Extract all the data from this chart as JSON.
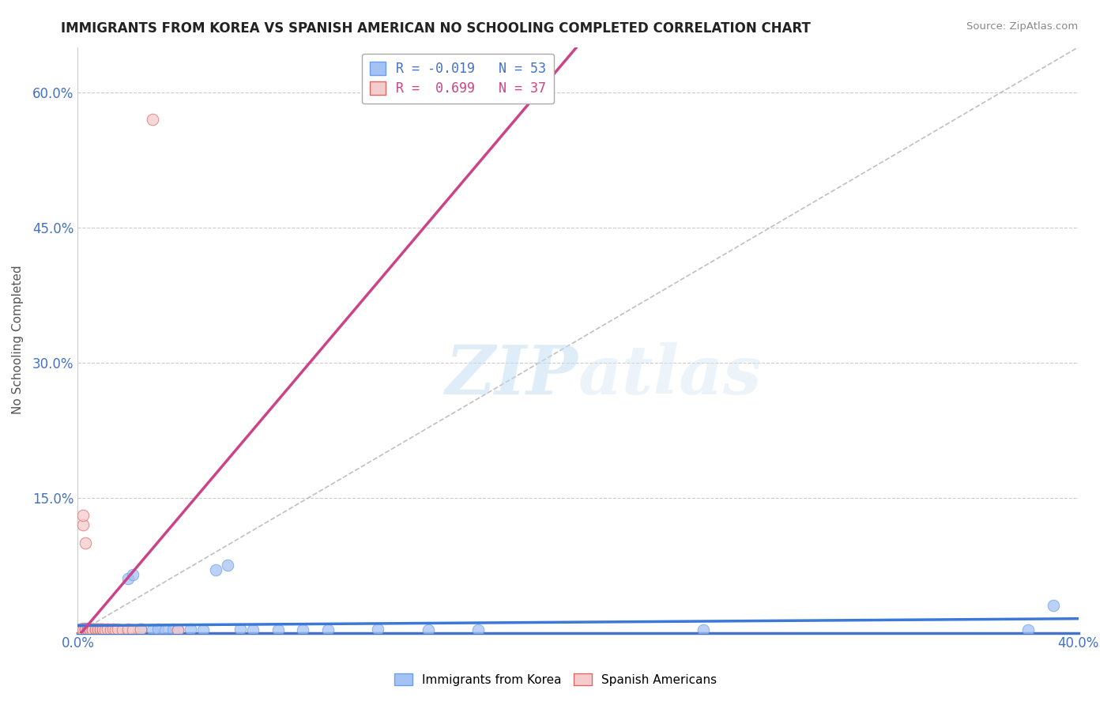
{
  "title": "IMMIGRANTS FROM KOREA VS SPANISH AMERICAN NO SCHOOLING COMPLETED CORRELATION CHART",
  "source": "Source: ZipAtlas.com",
  "ylabel_label": "No Schooling Completed",
  "xlim": [
    0.0,
    0.4
  ],
  "ylim": [
    0.0,
    0.65
  ],
  "xtick_vals": [
    0.0,
    0.05,
    0.1,
    0.15,
    0.2,
    0.25,
    0.3,
    0.35,
    0.4
  ],
  "ytick_vals": [
    0.0,
    0.15,
    0.3,
    0.45,
    0.6
  ],
  "blue_fill": "#a4c2f4",
  "blue_edge": "#6d9eeb",
  "pink_fill": "#f4cccc",
  "pink_edge": "#e06666",
  "blue_line_color": "#3c78d8",
  "pink_line_color": "#cc4488",
  "ref_line_color": "#b0b0b0",
  "legend_label1": "R = -0.019   N = 53",
  "legend_label2": "R =  0.699   N = 37",
  "watermark_zip": "ZIP",
  "watermark_atlas": "atlas",
  "bg_color": "#ffffff",
  "blue_scatter_x": [
    0.001,
    0.001,
    0.002,
    0.002,
    0.002,
    0.003,
    0.003,
    0.003,
    0.004,
    0.004,
    0.004,
    0.005,
    0.005,
    0.005,
    0.006,
    0.006,
    0.007,
    0.007,
    0.007,
    0.008,
    0.008,
    0.009,
    0.009,
    0.01,
    0.01,
    0.011,
    0.012,
    0.013,
    0.014,
    0.015,
    0.02,
    0.022,
    0.025,
    0.03,
    0.032,
    0.035,
    0.038,
    0.04,
    0.045,
    0.05,
    0.055,
    0.06,
    0.065,
    0.07,
    0.08,
    0.09,
    0.1,
    0.12,
    0.14,
    0.16,
    0.25,
    0.38,
    0.39
  ],
  "blue_scatter_y": [
    0.003,
    0.004,
    0.003,
    0.005,
    0.004,
    0.003,
    0.004,
    0.005,
    0.003,
    0.004,
    0.005,
    0.003,
    0.004,
    0.003,
    0.004,
    0.003,
    0.004,
    0.003,
    0.004,
    0.003,
    0.004,
    0.003,
    0.004,
    0.003,
    0.004,
    0.003,
    0.004,
    0.003,
    0.004,
    0.003,
    0.06,
    0.065,
    0.004,
    0.003,
    0.004,
    0.003,
    0.004,
    0.003,
    0.004,
    0.003,
    0.07,
    0.075,
    0.004,
    0.003,
    0.003,
    0.003,
    0.003,
    0.004,
    0.003,
    0.003,
    0.003,
    0.003,
    0.03
  ],
  "pink_scatter_x": [
    0.001,
    0.001,
    0.002,
    0.002,
    0.002,
    0.003,
    0.003,
    0.003,
    0.004,
    0.004,
    0.004,
    0.005,
    0.005,
    0.005,
    0.006,
    0.006,
    0.006,
    0.007,
    0.007,
    0.008,
    0.008,
    0.009,
    0.009,
    0.01,
    0.01,
    0.011,
    0.012,
    0.013,
    0.014,
    0.015,
    0.016,
    0.018,
    0.02,
    0.022,
    0.025,
    0.03,
    0.04
  ],
  "pink_scatter_y": [
    0.003,
    0.004,
    0.003,
    0.12,
    0.13,
    0.003,
    0.004,
    0.1,
    0.003,
    0.004,
    0.003,
    0.003,
    0.004,
    0.003,
    0.003,
    0.004,
    0.003,
    0.003,
    0.004,
    0.003,
    0.004,
    0.003,
    0.004,
    0.003,
    0.004,
    0.003,
    0.004,
    0.003,
    0.004,
    0.003,
    0.004,
    0.003,
    0.004,
    0.003,
    0.004,
    0.57,
    0.003
  ]
}
